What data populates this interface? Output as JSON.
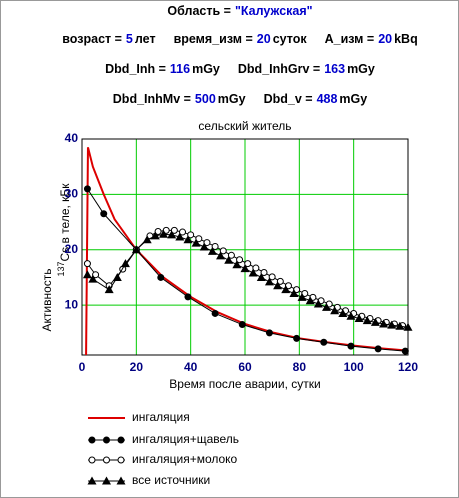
{
  "header": {
    "lines": [
      [
        {
          "label": "Область =",
          "value": "\"Калужская\""
        }
      ],
      [
        {
          "label": "возраст =",
          "value": 5,
          "unit": "лет"
        },
        {
          "label": "время_изм =",
          "value": 20,
          "unit": "суток"
        },
        {
          "label": "A_изм =",
          "value": 20,
          "unit": "kBq"
        }
      ],
      [
        {
          "label": "Dbd_Inh =",
          "value": 116,
          "unit": "mGy"
        },
        {
          "label": "Dbd_InhGrv =",
          "value": 163,
          "unit": "mGy"
        }
      ],
      [
        {
          "label": "Dbd_InhMv =",
          "value": 500,
          "unit": "mGy"
        },
        {
          "label": "Dbd_v =",
          "value": 488,
          "unit": "mGy"
        }
      ]
    ]
  },
  "chart_data": {
    "type": "line",
    "title": "сельский житель",
    "xlabel": "Время после аварии, сутки",
    "ylabel": "Активность",
    "ylabel_isotope": "137",
    "ylabel_rest": "Cs в теле, кБк",
    "xlim": [
      0,
      120
    ],
    "ylim": [
      1,
      40
    ],
    "xticks": [
      0,
      20,
      40,
      60,
      80,
      100,
      120
    ],
    "yticks": [
      10,
      20,
      30,
      40
    ],
    "grid": true,
    "grid_color": "#00cc00",
    "series": [
      {
        "name": "ингаляция",
        "color": "#dd0000",
        "marker": "none",
        "x": [
          1.5,
          2.2,
          4,
          8,
          12,
          20,
          30,
          40,
          50,
          60,
          70,
          80,
          90,
          100,
          110,
          120
        ],
        "values": [
          1,
          38.5,
          35,
          30,
          25.5,
          20,
          15,
          11.5,
          8.7,
          6.6,
          5.1,
          4,
          3.3,
          2.7,
          2.2,
          1.8
        ]
      },
      {
        "name": "ингаляция+щавель",
        "color": "#000000",
        "marker": "filled-circle",
        "x": [
          2,
          8,
          20,
          29,
          39,
          49,
          59,
          69,
          79,
          89,
          99,
          109,
          119
        ],
        "values": [
          31,
          26.5,
          20,
          15,
          11.5,
          8.5,
          6.5,
          5,
          4,
          3.3,
          2.6,
          2.1,
          1.7
        ]
      },
      {
        "name": "ингаляция+молоко",
        "color": "#000000",
        "marker": "open-circle",
        "x": [
          2,
          5,
          10,
          15,
          20,
          25,
          28,
          31,
          34,
          37,
          40,
          43,
          46,
          49,
          52,
          55,
          58,
          61,
          64,
          67,
          70,
          73,
          76,
          79,
          82,
          85,
          88,
          91,
          94,
          97,
          100,
          103,
          106,
          109,
          112,
          115,
          118
        ],
        "values": [
          17.5,
          15.5,
          13.5,
          16.5,
          20,
          22.5,
          23.3,
          23.5,
          23.5,
          23.2,
          22.7,
          22,
          21.3,
          20.6,
          19.8,
          19,
          18.2,
          17.5,
          16.7,
          15.9,
          15.1,
          14.3,
          13.5,
          12.8,
          12.1,
          11.4,
          10.8,
          10.2,
          9.6,
          9,
          8.5,
          8,
          7.6,
          7.2,
          6.9,
          6.6,
          6.3
        ]
      },
      {
        "name": "все источники",
        "color": "#000000",
        "marker": "filled-triangle",
        "x": [
          2,
          4,
          10,
          13,
          16,
          20,
          24,
          27,
          30,
          33,
          36,
          39,
          42,
          45,
          48,
          51,
          54,
          57,
          60,
          63,
          66,
          69,
          72,
          75,
          78,
          81,
          84,
          87,
          90,
          93,
          96,
          99,
          102,
          105,
          108,
          111,
          114,
          117,
          120
        ],
        "values": [
          15.5,
          14.7,
          12.8,
          15,
          17.5,
          20,
          21.8,
          22.5,
          22.8,
          22.7,
          22.3,
          21.8,
          21.2,
          20.5,
          19.7,
          18.9,
          18.1,
          17.3,
          16.6,
          15.8,
          15,
          14.2,
          13.5,
          12.8,
          12.1,
          11.4,
          10.8,
          10.2,
          9.6,
          9,
          8.5,
          8,
          7.6,
          7.2,
          6.9,
          6.6,
          6.4,
          6.2,
          6
        ]
      }
    ]
  }
}
